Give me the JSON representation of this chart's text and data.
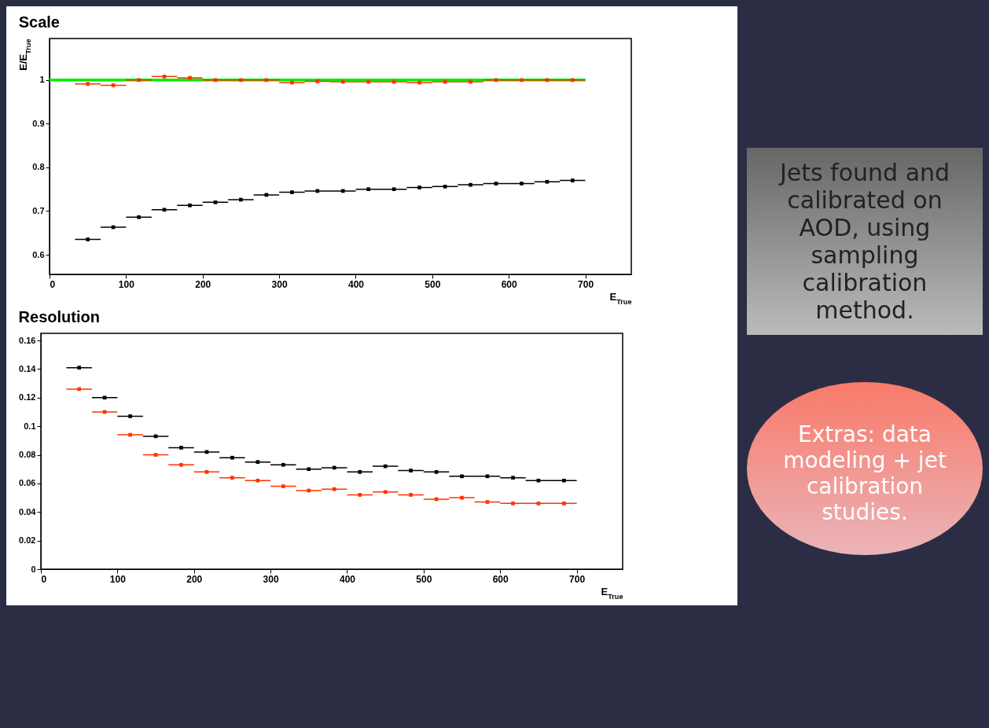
{
  "chart_data": [
    {
      "type": "scatter",
      "title": "Scale",
      "ylabel": "E/E$_{True}$",
      "xlabel": "E$_{True}$",
      "xlim": [
        0,
        760
      ],
      "xticks": [
        0,
        100,
        200,
        300,
        400,
        500,
        600,
        700
      ],
      "ylim": [
        0.555,
        1.095
      ],
      "yticks": [
        0.6,
        0.7,
        0.8,
        0.9,
        1
      ],
      "marker": "square",
      "x": [
        50,
        83.3,
        116.7,
        150,
        183.3,
        216.7,
        250,
        283.3,
        316.7,
        350,
        383.3,
        416.7,
        450,
        483.3,
        516.7,
        550,
        583.3,
        616.7,
        650,
        683.3
      ],
      "series": [
        {
          "color": "#ff3300",
          "values": [
            0.991,
            0.988,
            1.0,
            1.008,
            1.005,
            1.0,
            1.0,
            1.0,
            0.994,
            0.997,
            0.996,
            0.996,
            0.996,
            0.994,
            0.996,
            0.996,
            1.0,
            1.0,
            1.0,
            1.0
          ],
          "xerrors": [
            16.7,
            16.7,
            16.7,
            16.7,
            16.7,
            16.7,
            16.7,
            16.7,
            16.7,
            16.7,
            16.7,
            16.7,
            16.7,
            16.7,
            16.7,
            16.7,
            16.7,
            16.7,
            16.7,
            16.7
          ]
        },
        {
          "color": "#000000",
          "values": [
            0.635,
            0.663,
            0.686,
            0.703,
            0.713,
            0.72,
            0.726,
            0.737,
            0.743,
            0.746,
            0.746,
            0.75,
            0.75,
            0.754,
            0.756,
            0.76,
            0.763,
            0.763,
            0.767,
            0.77
          ],
          "xerrors": [
            16.7,
            16.7,
            16.7,
            16.7,
            16.7,
            16.7,
            16.7,
            16.7,
            16.7,
            16.7,
            16.7,
            16.7,
            16.7,
            16.7,
            16.7,
            16.7,
            16.7,
            16.7,
            16.7,
            16.7
          ]
        },
        {
          "type": "line",
          "color": "#00ee00",
          "x": [
            0,
            700
          ],
          "values": [
            1,
            1
          ],
          "marker": "none"
        }
      ],
      "annotations": [
        "Jets found and calibrated on AOD, using sampling calibration method."
      ]
    },
    {
      "type": "scatter",
      "title": "Resolution",
      "xlabel": "E$_{True}$",
      "xlim": [
        0,
        760
      ],
      "xticks": [
        0,
        100,
        200,
        300,
        400,
        500,
        600,
        700
      ],
      "ylim": [
        0,
        0.165
      ],
      "yticks": [
        0,
        0.02,
        0.04,
        0.06,
        0.08,
        0.1,
        0.12,
        0.14,
        0.16
      ],
      "marker": "square",
      "x": [
        50,
        83.3,
        116.7,
        150,
        183.3,
        216.7,
        250,
        283.3,
        316.7,
        350,
        383.3,
        416.7,
        450,
        483.3,
        516.7,
        550,
        583.3,
        616.7,
        650,
        683.3
      ],
      "series": [
        {
          "color": "#000000",
          "values": [
            0.141,
            0.12,
            0.107,
            0.093,
            0.085,
            0.082,
            0.078,
            0.075,
            0.073,
            0.07,
            0.071,
            0.068,
            0.072,
            0.069,
            0.068,
            0.065,
            0.065,
            0.064,
            0.062,
            0.062
          ],
          "xerrors": [
            16.7,
            16.7,
            16.7,
            16.7,
            16.7,
            16.7,
            16.7,
            16.7,
            16.7,
            16.7,
            16.7,
            16.7,
            16.7,
            16.7,
            16.7,
            16.7,
            16.7,
            16.7,
            16.7,
            16.7
          ]
        },
        {
          "color": "#ff3300",
          "values": [
            0.126,
            0.11,
            0.094,
            0.08,
            0.073,
            0.068,
            0.064,
            0.062,
            0.058,
            0.055,
            0.056,
            0.052,
            0.054,
            0.052,
            0.049,
            0.05,
            0.047,
            0.046,
            0.046,
            0.046
          ],
          "xerrors": [
            16.7,
            16.7,
            16.7,
            16.7,
            16.7,
            16.7,
            16.7,
            16.7,
            16.7,
            16.7,
            16.7,
            16.7,
            16.7,
            16.7,
            16.7,
            16.7,
            16.7,
            16.7,
            16.7,
            16.7
          ]
        }
      ],
      "annotations": [
        "Extras: data modeling + jet calibration studies."
      ]
    }
  ]
}
